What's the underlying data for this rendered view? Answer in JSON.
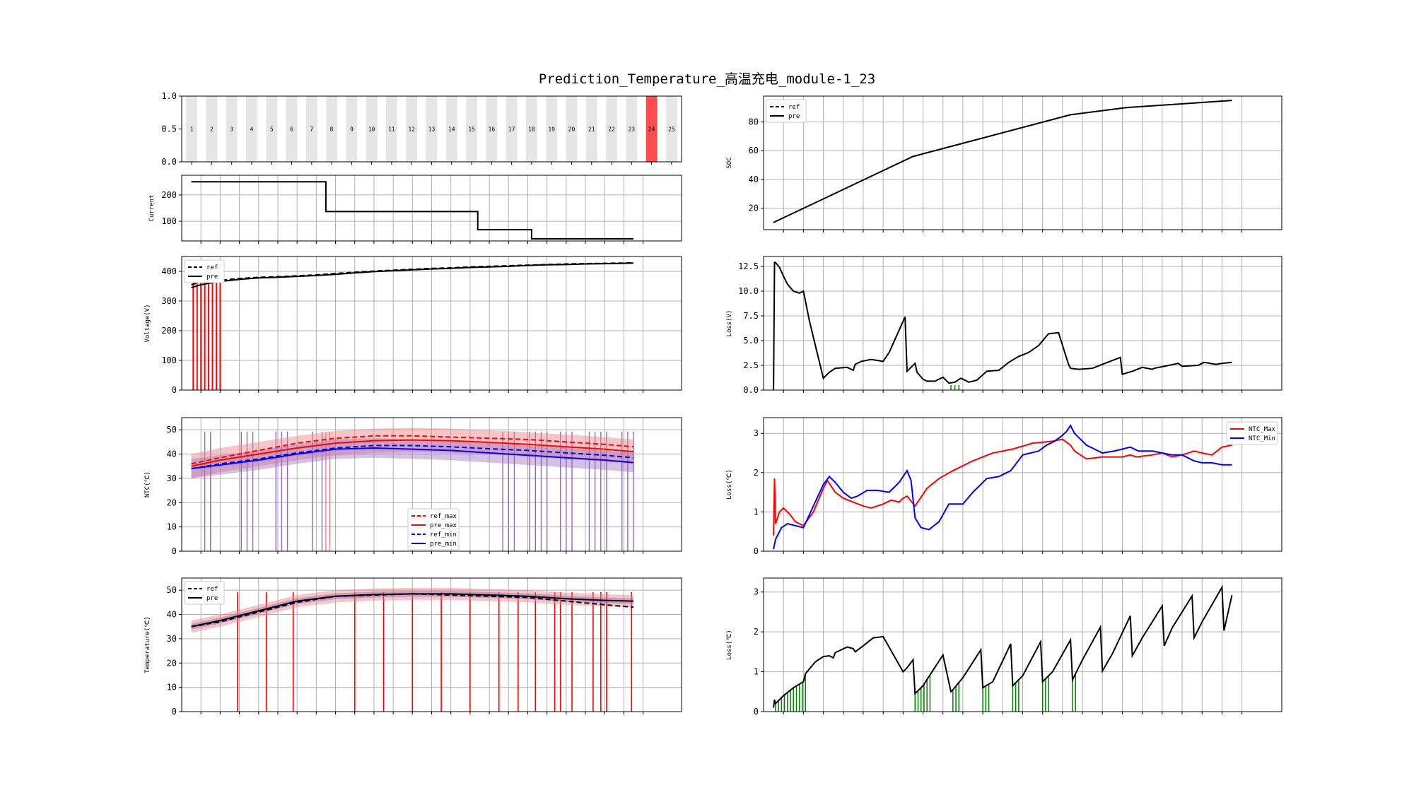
{
  "figure": {
    "title": "Prediction_Temperature_高温充电_module-1_23",
    "colors": {
      "red": "#ff0000",
      "blue": "#0000ff",
      "black": "#000000",
      "green": "#008000",
      "purple": "#9467bd",
      "pink": "#f08080",
      "grid": "#b0b0b0",
      "band": "#e6e6e6",
      "highlight": "#ff4d4d"
    }
  },
  "chart_data": [
    {
      "id": "step-index",
      "type": "bar",
      "categories": [
        "1",
        "2",
        "3",
        "4",
        "5",
        "6",
        "7",
        "8",
        "9",
        "10",
        "11",
        "12",
        "13",
        "14",
        "15",
        "16",
        "17",
        "18",
        "19",
        "20",
        "21",
        "22",
        "23",
        "24",
        "25"
      ],
      "values": [
        1,
        1,
        1,
        1,
        1,
        1,
        1,
        1,
        1,
        1,
        1,
        1,
        1,
        1,
        1,
        1,
        1,
        1,
        1,
        1,
        1,
        1,
        1,
        1,
        1
      ],
      "highlight": "24",
      "ylim": [
        0,
        1
      ],
      "yticks": [
        "0.0",
        "0.5",
        "1.0"
      ],
      "xlabel": "",
      "ylabel": ""
    },
    {
      "id": "current",
      "type": "line",
      "ylabel": "Current",
      "xlim": [
        0,
        26
      ],
      "ylim": [
        25,
        275
      ],
      "yticks": [
        "100",
        "200"
      ],
      "series": [
        {
          "x": [
            0.5,
            7.5,
            7.5,
            15.4,
            15.4,
            18.2,
            18.2,
            23.5
          ],
          "y": [
            250,
            250,
            137,
            137,
            68,
            68,
            33,
            33
          ]
        }
      ]
    },
    {
      "id": "voltage",
      "type": "line",
      "ylabel": "Voltage(V)",
      "xlim": [
        0,
        26
      ],
      "ylim": [
        0,
        450
      ],
      "yticks": [
        "0",
        "100",
        "200",
        "300",
        "400"
      ],
      "legend": [
        "ref",
        "pre"
      ],
      "series": [
        {
          "name": "ref",
          "style": "dashed",
          "x": [
            0.5,
            1,
            2,
            3,
            4,
            5,
            6,
            7,
            8,
            9,
            10,
            11,
            12,
            13,
            14,
            15,
            16,
            17,
            18,
            19,
            20,
            21,
            22,
            23,
            23.5
          ],
          "y": [
            355,
            364,
            370,
            376,
            380,
            382,
            385,
            388,
            393,
            397,
            401,
            404,
            407,
            410,
            412,
            415,
            417,
            419,
            421,
            423,
            425,
            426,
            427,
            428,
            429
          ]
        },
        {
          "name": "pre",
          "style": "solid",
          "x": [
            0.5,
            1,
            2,
            3,
            4,
            5,
            6,
            7,
            8,
            9,
            10,
            11,
            12,
            13,
            14,
            15,
            16,
            17,
            18,
            19,
            20,
            21,
            22,
            23,
            23.5
          ],
          "y": [
            345,
            355,
            366,
            373,
            378,
            380,
            383,
            386,
            390,
            395,
            399,
            402,
            405,
            408,
            410,
            413,
            415,
            417,
            420,
            422,
            423,
            425,
            426,
            427,
            428
          ]
        }
      ],
      "spikes_x": [
        0.6,
        0.8,
        1.0,
        1.2,
        1.4,
        1.6,
        1.8,
        2.0
      ]
    },
    {
      "id": "ntc",
      "type": "line",
      "ylabel": "NTC(℃)",
      "xlim": [
        0,
        26
      ],
      "ylim": [
        0,
        55
      ],
      "yticks": [
        "0",
        "10",
        "20",
        "30",
        "40",
        "50"
      ],
      "legend": [
        "ref_max",
        "pre_max",
        "ref_min",
        "pre_min"
      ],
      "series": [
        {
          "name": "ref_max",
          "style": "dashed",
          "x": [
            0.5,
            2,
            4,
            6,
            8,
            10,
            12,
            14,
            16,
            18,
            20,
            22,
            23.5
          ],
          "y": [
            36,
            38.5,
            41.5,
            44.5,
            46.5,
            47.5,
            47.5,
            47,
            46.5,
            46,
            45,
            44,
            43
          ]
        },
        {
          "name": "pre_max",
          "style": "solid",
          "x": [
            0.5,
            2,
            4,
            6,
            8,
            10,
            12,
            14,
            16,
            18,
            20,
            22,
            23.5
          ],
          "y": [
            35,
            37.5,
            40,
            42.5,
            44.5,
            45.5,
            45.8,
            45.5,
            44.8,
            44,
            43,
            42,
            41
          ]
        },
        {
          "name": "ref_min",
          "style": "dashed",
          "x": [
            0.5,
            2,
            4,
            6,
            8,
            10,
            12,
            14,
            16,
            18,
            20,
            22,
            23.5
          ],
          "y": [
            34,
            36,
            38,
            40.5,
            42.5,
            43.5,
            43.5,
            43,
            42.2,
            41.5,
            40.5,
            39.5,
            38.5
          ]
        },
        {
          "name": "pre_min",
          "style": "solid",
          "x": [
            0.5,
            2,
            4,
            6,
            8,
            10,
            12,
            14,
            16,
            18,
            20,
            22,
            23.5
          ],
          "y": [
            34,
            35.5,
            37.5,
            40,
            42,
            42.5,
            42,
            41.5,
            40.5,
            39.5,
            38.5,
            37.5,
            36.5
          ]
        }
      ],
      "spikes_x": [
        1.2,
        1.5,
        3.1,
        3.4,
        3.7,
        4.9,
        5.2,
        5.5,
        6.8,
        7.3,
        16.7,
        17.0,
        17.3,
        18.1,
        18.4,
        18.7,
        19.0,
        19.7,
        20.0,
        20.3,
        21.2,
        21.5,
        21.8,
        22.1,
        22.9,
        23.2,
        23.5
      ],
      "pink_spikes_x": [
        7.5,
        7.7
      ]
    },
    {
      "id": "temperature",
      "type": "line",
      "ylabel": "Temperature(℃)",
      "xlim": [
        0,
        26
      ],
      "ylim": [
        0,
        55
      ],
      "yticks": [
        "0",
        "10",
        "20",
        "30",
        "40",
        "50"
      ],
      "legend": [
        "ref",
        "pre"
      ],
      "series": [
        {
          "name": "ref",
          "style": "dashed",
          "x": [
            0.5,
            2,
            4,
            6,
            8,
            10,
            12,
            14,
            16,
            18,
            20,
            22,
            23.5
          ],
          "y": [
            35,
            37,
            41,
            45,
            47.5,
            48,
            48.5,
            48,
            47.5,
            47,
            45.5,
            44,
            43
          ]
        },
        {
          "name": "pre",
          "style": "solid",
          "x": [
            0.5,
            2,
            4,
            6,
            8,
            10,
            12,
            14,
            16,
            18,
            20,
            22,
            23.5
          ],
          "y": [
            35,
            37.5,
            41.5,
            45.5,
            47.5,
            48.2,
            48.5,
            48.5,
            48,
            47.5,
            46.5,
            45.8,
            45.5
          ]
        }
      ],
      "spikes_x": [
        2.9,
        4.4,
        5.8,
        9.0,
        10.5,
        12.0,
        13.5,
        15.0,
        16.5,
        17.5,
        18.4,
        19.4,
        19.7,
        20.3,
        21.4,
        21.8,
        22.1,
        23.4
      ]
    },
    {
      "id": "soc",
      "type": "line",
      "ylabel": "SOC",
      "xlim": [
        0,
        26
      ],
      "ylim": [
        5,
        98
      ],
      "yticks": [
        "20",
        "40",
        "60",
        "80"
      ],
      "legend": [
        "ref",
        "pre"
      ],
      "series": [
        {
          "name": "pre",
          "style": "solid",
          "x": [
            0.5,
            7.5,
            15.4,
            18.2,
            23.5
          ],
          "y": [
            10,
            56,
            85,
            90,
            95
          ]
        }
      ]
    },
    {
      "id": "voltage-loss",
      "type": "line",
      "ylabel": "Loss(V)",
      "xlim": [
        0,
        26
      ],
      "ylim": [
        0,
        13.5
      ],
      "yticks": [
        "0.0",
        "2.5",
        "5.0",
        "7.5",
        "10.0",
        "12.5"
      ],
      "series": [
        {
          "name": "loss",
          "x": [
            0.5,
            0.55,
            0.6,
            0.8,
            1.0,
            1.2,
            1.5,
            1.8,
            2.0,
            2.3,
            2.6,
            3.0,
            3.3,
            3.6,
            4.2,
            4.5,
            4.6,
            4.9,
            5.4,
            6.0,
            6.3,
            7.1,
            7.2,
            7.6,
            7.7,
            8.0,
            8.2,
            8.6,
            9.0,
            9.3,
            9.6,
            9.9,
            10.3,
            10.7,
            11.2,
            11.8,
            12.3,
            12.8,
            13.3,
            13.8,
            14.3,
            14.8,
            15.3,
            15.4,
            15.8,
            16.5,
            17.0,
            17.9,
            18.0,
            18.5,
            19.0,
            19.5,
            19.6,
            20.1,
            20.8,
            21.0,
            21.8,
            22.1,
            22.7,
            23.0,
            23.5
          ],
          "y": [
            0,
            12.9,
            12.9,
            12.4,
            11.5,
            10.7,
            10.0,
            9.8,
            10.0,
            7.0,
            4.5,
            1.2,
            1.8,
            2.2,
            2.3,
            2.0,
            2.6,
            2.9,
            3.1,
            2.9,
            3.8,
            7.4,
            1.9,
            2.7,
            1.8,
            1.1,
            0.9,
            0.9,
            1.3,
            0.7,
            0.8,
            1.2,
            0.8,
            1.0,
            1.9,
            2.0,
            2.8,
            3.4,
            3.8,
            4.5,
            5.7,
            5.8,
            2.6,
            2.2,
            2.1,
            2.2,
            2.6,
            3.3,
            1.6,
            1.9,
            2.3,
            2.1,
            2.2,
            2.4,
            2.7,
            2.4,
            2.5,
            2.8,
            2.6,
            2.7,
            2.8
          ]
        }
      ],
      "green_spikes_x": [
        9.4,
        9.6,
        9.8
      ]
    },
    {
      "id": "ntc-loss",
      "type": "line",
      "ylabel": "Loss(℃)",
      "xlim": [
        0,
        26
      ],
      "ylim": [
        0,
        3.4
      ],
      "yticks": [
        "0",
        "1",
        "2",
        "3"
      ],
      "legend": [
        "NTC_Max",
        "NTC_Min"
      ],
      "series": [
        {
          "name": "NTC_Max",
          "x": [
            0.5,
            0.55,
            0.6,
            0.8,
            1.0,
            1.3,
            1.6,
            2.0,
            2.5,
            3.0,
            3.2,
            3.6,
            4.0,
            4.5,
            5.0,
            5.4,
            6.0,
            6.4,
            6.8,
            7.0,
            7.2,
            7.6,
            8.2,
            8.8,
            9.5,
            10.5,
            11.5,
            12.5,
            13.5,
            14.5,
            15.0,
            15.4,
            15.6,
            16.2,
            17.0,
            17.5,
            18.0,
            18.4,
            18.7,
            19.5,
            20.0,
            20.5,
            21.0,
            21.6,
            22.0,
            22.5,
            23.0,
            23.5
          ],
          "y": [
            0.4,
            1.85,
            0.7,
            1.0,
            1.1,
            0.95,
            0.75,
            0.65,
            1.0,
            1.6,
            1.8,
            1.5,
            1.35,
            1.25,
            1.15,
            1.1,
            1.2,
            1.3,
            1.25,
            1.35,
            1.4,
            1.15,
            1.6,
            1.85,
            2.05,
            2.3,
            2.5,
            2.6,
            2.75,
            2.8,
            2.85,
            2.7,
            2.55,
            2.35,
            2.4,
            2.4,
            2.4,
            2.45,
            2.4,
            2.45,
            2.5,
            2.4,
            2.45,
            2.55,
            2.5,
            2.45,
            2.65,
            2.7
          ]
        },
        {
          "name": "NTC_Min",
          "x": [
            0.5,
            0.6,
            0.9,
            1.2,
            1.6,
            2.0,
            2.5,
            3.0,
            3.3,
            3.6,
            4.0,
            4.4,
            4.7,
            5.2,
            5.7,
            6.3,
            6.8,
            7.2,
            7.4,
            7.6,
            7.9,
            8.3,
            8.8,
            9.3,
            10.0,
            10.5,
            11.2,
            11.8,
            12.4,
            13.0,
            13.8,
            14.2,
            14.6,
            15.0,
            15.2,
            15.4,
            15.6,
            16.2,
            17.0,
            17.6,
            18.0,
            18.4,
            18.8,
            19.5,
            20.0,
            20.5,
            21.0,
            21.6,
            22.0,
            22.5,
            23.0,
            23.5
          ],
          "y": [
            0.05,
            0.3,
            0.6,
            0.7,
            0.65,
            0.6,
            1.15,
            1.7,
            1.9,
            1.75,
            1.5,
            1.35,
            1.4,
            1.55,
            1.55,
            1.5,
            1.75,
            2.05,
            1.8,
            0.85,
            0.6,
            0.55,
            0.75,
            1.2,
            1.2,
            1.5,
            1.85,
            1.9,
            2.05,
            2.45,
            2.55,
            2.7,
            2.8,
            2.95,
            3.05,
            3.2,
            3.0,
            2.7,
            2.5,
            2.55,
            2.6,
            2.65,
            2.55,
            2.55,
            2.5,
            2.45,
            2.45,
            2.3,
            2.25,
            2.25,
            2.2,
            2.2
          ]
        }
      ]
    },
    {
      "id": "temperature-loss",
      "type": "line",
      "ylabel": "Loss(℃)",
      "xlim": [
        0,
        26
      ],
      "ylim": [
        0,
        3.35
      ],
      "yticks": [
        "0",
        "1",
        "2",
        "3"
      ],
      "series": [
        {
          "name": "loss",
          "x": [
            0.5,
            0.55,
            0.6,
            1.0,
            1.5,
            2.0,
            2.1,
            2.6,
            3.0,
            3.3,
            3.5,
            3.6,
            4.2,
            4.5,
            4.6,
            5.0,
            5.5,
            6.0,
            7.0,
            7.2,
            7.5,
            7.6,
            8.0,
            9.0,
            9.4,
            9.5,
            10.0,
            10.9,
            11.0,
            11.5,
            12.4,
            12.5,
            13.0,
            13.9,
            14.0,
            14.5,
            15.4,
            15.5,
            16.0,
            16.9,
            17.0,
            17.5,
            18.4,
            18.5,
            19.0,
            20.0,
            20.1,
            20.5,
            21.5,
            21.6,
            22.0,
            23.0,
            23.1,
            23.5
          ],
          "y": [
            0.1,
            0.3,
            0.2,
            0.4,
            0.6,
            0.75,
            0.95,
            1.25,
            1.38,
            1.4,
            1.35,
            1.48,
            1.62,
            1.58,
            1.5,
            1.65,
            1.85,
            1.88,
            1.0,
            1.1,
            1.3,
            0.45,
            0.65,
            1.42,
            0.5,
            0.55,
            0.85,
            1.55,
            0.6,
            0.75,
            1.7,
            0.65,
            0.9,
            1.75,
            0.75,
            1.0,
            1.8,
            0.8,
            1.3,
            2.12,
            1.02,
            1.45,
            2.4,
            1.4,
            1.85,
            2.65,
            1.65,
            2.1,
            2.9,
            1.85,
            2.25,
            3.12,
            2.03,
            2.92
          ]
        }
      ],
      "green_spikes_x": [
        0.6,
        0.75,
        0.9,
        1.05,
        1.2,
        1.35,
        1.5,
        1.65,
        1.8,
        1.95,
        2.1,
        7.6,
        7.75,
        7.9,
        8.05,
        8.2,
        8.35,
        9.5,
        9.65,
        9.8,
        11.0,
        11.15,
        11.3,
        12.5,
        12.65,
        12.8,
        14.0,
        14.15,
        14.3,
        15.5,
        15.65
      ]
    }
  ]
}
